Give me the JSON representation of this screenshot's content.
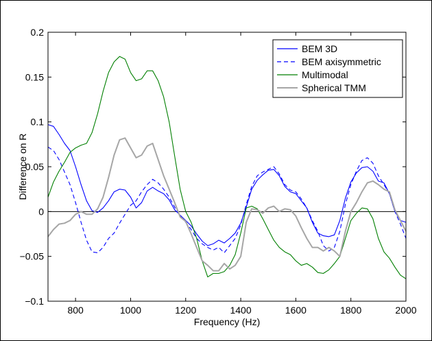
{
  "chart_data": {
    "type": "line",
    "title": "",
    "xlabel": "Frequency (Hz)",
    "ylabel": "Difference on R",
    "xlim": [
      700,
      2000
    ],
    "ylim": [
      -0.1,
      0.2
    ],
    "xticks": [
      800,
      1000,
      1200,
      1400,
      1600,
      1800,
      2000
    ],
    "yticks": [
      -0.1,
      -0.05,
      0,
      0.05,
      0.1,
      0.15,
      0.2
    ],
    "xtick_labels": [
      "800",
      "1000",
      "1200",
      "1400",
      "1600",
      "1800",
      "2000"
    ],
    "ytick_labels": [
      "−0.1",
      "−0.05",
      "0",
      "0.05",
      "0.1",
      "0.15",
      "0.2"
    ],
    "zero_line": true,
    "grid": false,
    "legend_position": "top-right",
    "series": [
      {
        "name": "BEM 3D",
        "color": "#0000ff",
        "dash": "solid",
        "x": [
          700,
          720,
          740,
          760,
          780,
          800,
          820,
          840,
          860,
          880,
          900,
          920,
          940,
          960,
          980,
          1000,
          1020,
          1040,
          1060,
          1080,
          1100,
          1120,
          1140,
          1160,
          1180,
          1200,
          1220,
          1240,
          1260,
          1280,
          1300,
          1320,
          1340,
          1360,
          1380,
          1400,
          1420,
          1440,
          1460,
          1480,
          1500,
          1520,
          1540,
          1560,
          1580,
          1600,
          1620,
          1640,
          1660,
          1680,
          1700,
          1720,
          1740,
          1760,
          1780,
          1800,
          1820,
          1840,
          1860,
          1880,
          1900,
          1920,
          1940,
          1960,
          1980,
          2000
        ],
        "y": [
          0.097,
          0.095,
          0.086,
          0.076,
          0.068,
          0.05,
          0.03,
          0.012,
          0.001,
          -0.001,
          0.004,
          0.012,
          0.022,
          0.025,
          0.024,
          0.016,
          0.004,
          0.01,
          0.023,
          0.027,
          0.023,
          0.02,
          0.013,
          0.002,
          -0.004,
          -0.01,
          -0.016,
          -0.025,
          -0.033,
          -0.038,
          -0.036,
          -0.032,
          -0.035,
          -0.03,
          -0.024,
          -0.013,
          0.005,
          0.025,
          0.035,
          0.041,
          0.046,
          0.047,
          0.04,
          0.028,
          0.022,
          0.02,
          0.012,
          0.004,
          -0.012,
          -0.024,
          -0.027,
          -0.028,
          -0.026,
          -0.01,
          0.015,
          0.033,
          0.043,
          0.049,
          0.05,
          0.045,
          0.034,
          0.032,
          0.02,
          0.0,
          -0.01,
          -0.012
        ]
      },
      {
        "name": "BEM axisymmetric",
        "color": "#0000ff",
        "dash": "dashed",
        "x": [
          700,
          720,
          740,
          760,
          780,
          800,
          820,
          840,
          860,
          880,
          900,
          920,
          940,
          960,
          980,
          1000,
          1020,
          1040,
          1060,
          1080,
          1100,
          1120,
          1140,
          1160,
          1180,
          1200,
          1220,
          1240,
          1260,
          1280,
          1300,
          1320,
          1340,
          1360,
          1380,
          1400,
          1420,
          1440,
          1460,
          1480,
          1500,
          1520,
          1540,
          1560,
          1580,
          1600,
          1620,
          1640,
          1660,
          1680,
          1700,
          1720,
          1740,
          1760,
          1780,
          1800,
          1820,
          1840,
          1860,
          1880,
          1900,
          1920,
          1940,
          1960,
          1980,
          2000
        ],
        "y": [
          0.072,
          0.068,
          0.058,
          0.044,
          0.03,
          0.01,
          -0.012,
          -0.032,
          -0.045,
          -0.046,
          -0.04,
          -0.03,
          -0.024,
          -0.013,
          -0.003,
          0.007,
          0.012,
          0.022,
          0.03,
          0.036,
          0.032,
          0.025,
          0.016,
          0.005,
          -0.005,
          -0.012,
          -0.02,
          -0.03,
          -0.036,
          -0.04,
          -0.043,
          -0.04,
          -0.046,
          -0.038,
          -0.03,
          -0.015,
          0.008,
          0.028,
          0.04,
          0.044,
          0.047,
          0.05,
          0.042,
          0.03,
          0.024,
          0.022,
          0.014,
          0.004,
          -0.01,
          -0.022,
          -0.038,
          -0.044,
          -0.04,
          -0.022,
          0.008,
          0.03,
          0.045,
          0.057,
          0.06,
          0.054,
          0.04,
          0.03,
          0.02,
          0.0,
          -0.014,
          -0.03
        ]
      },
      {
        "name": "Multimodal",
        "color": "#007f00",
        "dash": "solid",
        "x": [
          700,
          720,
          740,
          760,
          780,
          800,
          820,
          840,
          860,
          880,
          900,
          920,
          940,
          960,
          980,
          1000,
          1020,
          1040,
          1060,
          1080,
          1100,
          1120,
          1140,
          1160,
          1180,
          1200,
          1220,
          1240,
          1260,
          1280,
          1300,
          1320,
          1340,
          1360,
          1380,
          1400,
          1420,
          1440,
          1460,
          1480,
          1500,
          1520,
          1540,
          1560,
          1580,
          1600,
          1620,
          1640,
          1660,
          1680,
          1700,
          1720,
          1740,
          1760,
          1780,
          1800,
          1820,
          1840,
          1860,
          1880,
          1900,
          1920,
          1940,
          1960,
          1980,
          2000
        ],
        "y": [
          0.016,
          0.033,
          0.045,
          0.055,
          0.066,
          0.071,
          0.074,
          0.076,
          0.088,
          0.109,
          0.134,
          0.155,
          0.167,
          0.173,
          0.17,
          0.155,
          0.146,
          0.148,
          0.157,
          0.157,
          0.146,
          0.128,
          0.1,
          0.062,
          0.025,
          0.0,
          -0.012,
          -0.03,
          -0.055,
          -0.073,
          -0.069,
          -0.069,
          -0.067,
          -0.06,
          -0.048,
          -0.024,
          0.004,
          0.006,
          0.003,
          -0.008,
          -0.02,
          -0.032,
          -0.04,
          -0.045,
          -0.048,
          -0.055,
          -0.06,
          -0.058,
          -0.062,
          -0.068,
          -0.069,
          -0.065,
          -0.058,
          -0.05,
          -0.03,
          -0.01,
          -0.002,
          0.004,
          0.003,
          -0.008,
          -0.03,
          -0.045,
          -0.052,
          -0.062,
          -0.071,
          -0.075
        ]
      },
      {
        "name": "Spherical TMM",
        "color": "#a6a6a6",
        "dash": "solid",
        "x": [
          700,
          720,
          740,
          760,
          780,
          800,
          820,
          840,
          860,
          880,
          900,
          920,
          940,
          960,
          980,
          1000,
          1020,
          1040,
          1060,
          1080,
          1100,
          1120,
          1140,
          1160,
          1180,
          1200,
          1220,
          1240,
          1260,
          1280,
          1300,
          1320,
          1340,
          1360,
          1380,
          1400,
          1420,
          1440,
          1460,
          1480,
          1500,
          1520,
          1540,
          1560,
          1580,
          1600,
          1620,
          1640,
          1660,
          1680,
          1700,
          1720,
          1740,
          1760,
          1780,
          1800,
          1820,
          1840,
          1860,
          1880,
          1900,
          1920,
          1940,
          1960,
          1980,
          2000
        ],
        "y": [
          -0.028,
          -0.02,
          -0.014,
          -0.013,
          -0.01,
          -0.003,
          0.0,
          -0.003,
          -0.003,
          0.003,
          0.016,
          0.038,
          0.063,
          0.08,
          0.082,
          0.071,
          0.06,
          0.063,
          0.073,
          0.076,
          0.058,
          0.04,
          0.025,
          0.01,
          -0.006,
          -0.011,
          -0.025,
          -0.04,
          -0.055,
          -0.06,
          -0.066,
          -0.066,
          -0.058,
          -0.064,
          -0.06,
          -0.05,
          -0.012,
          0.003,
          0.002,
          -0.002,
          0.004,
          0.006,
          0.0,
          0.003,
          0.002,
          -0.005,
          -0.018,
          -0.03,
          -0.04,
          -0.04,
          -0.044,
          -0.04,
          -0.044,
          -0.05,
          -0.022,
          0.0,
          0.01,
          0.022,
          0.032,
          0.034,
          0.03,
          0.025,
          0.022,
          0.002,
          -0.01,
          -0.022
        ]
      }
    ]
  }
}
